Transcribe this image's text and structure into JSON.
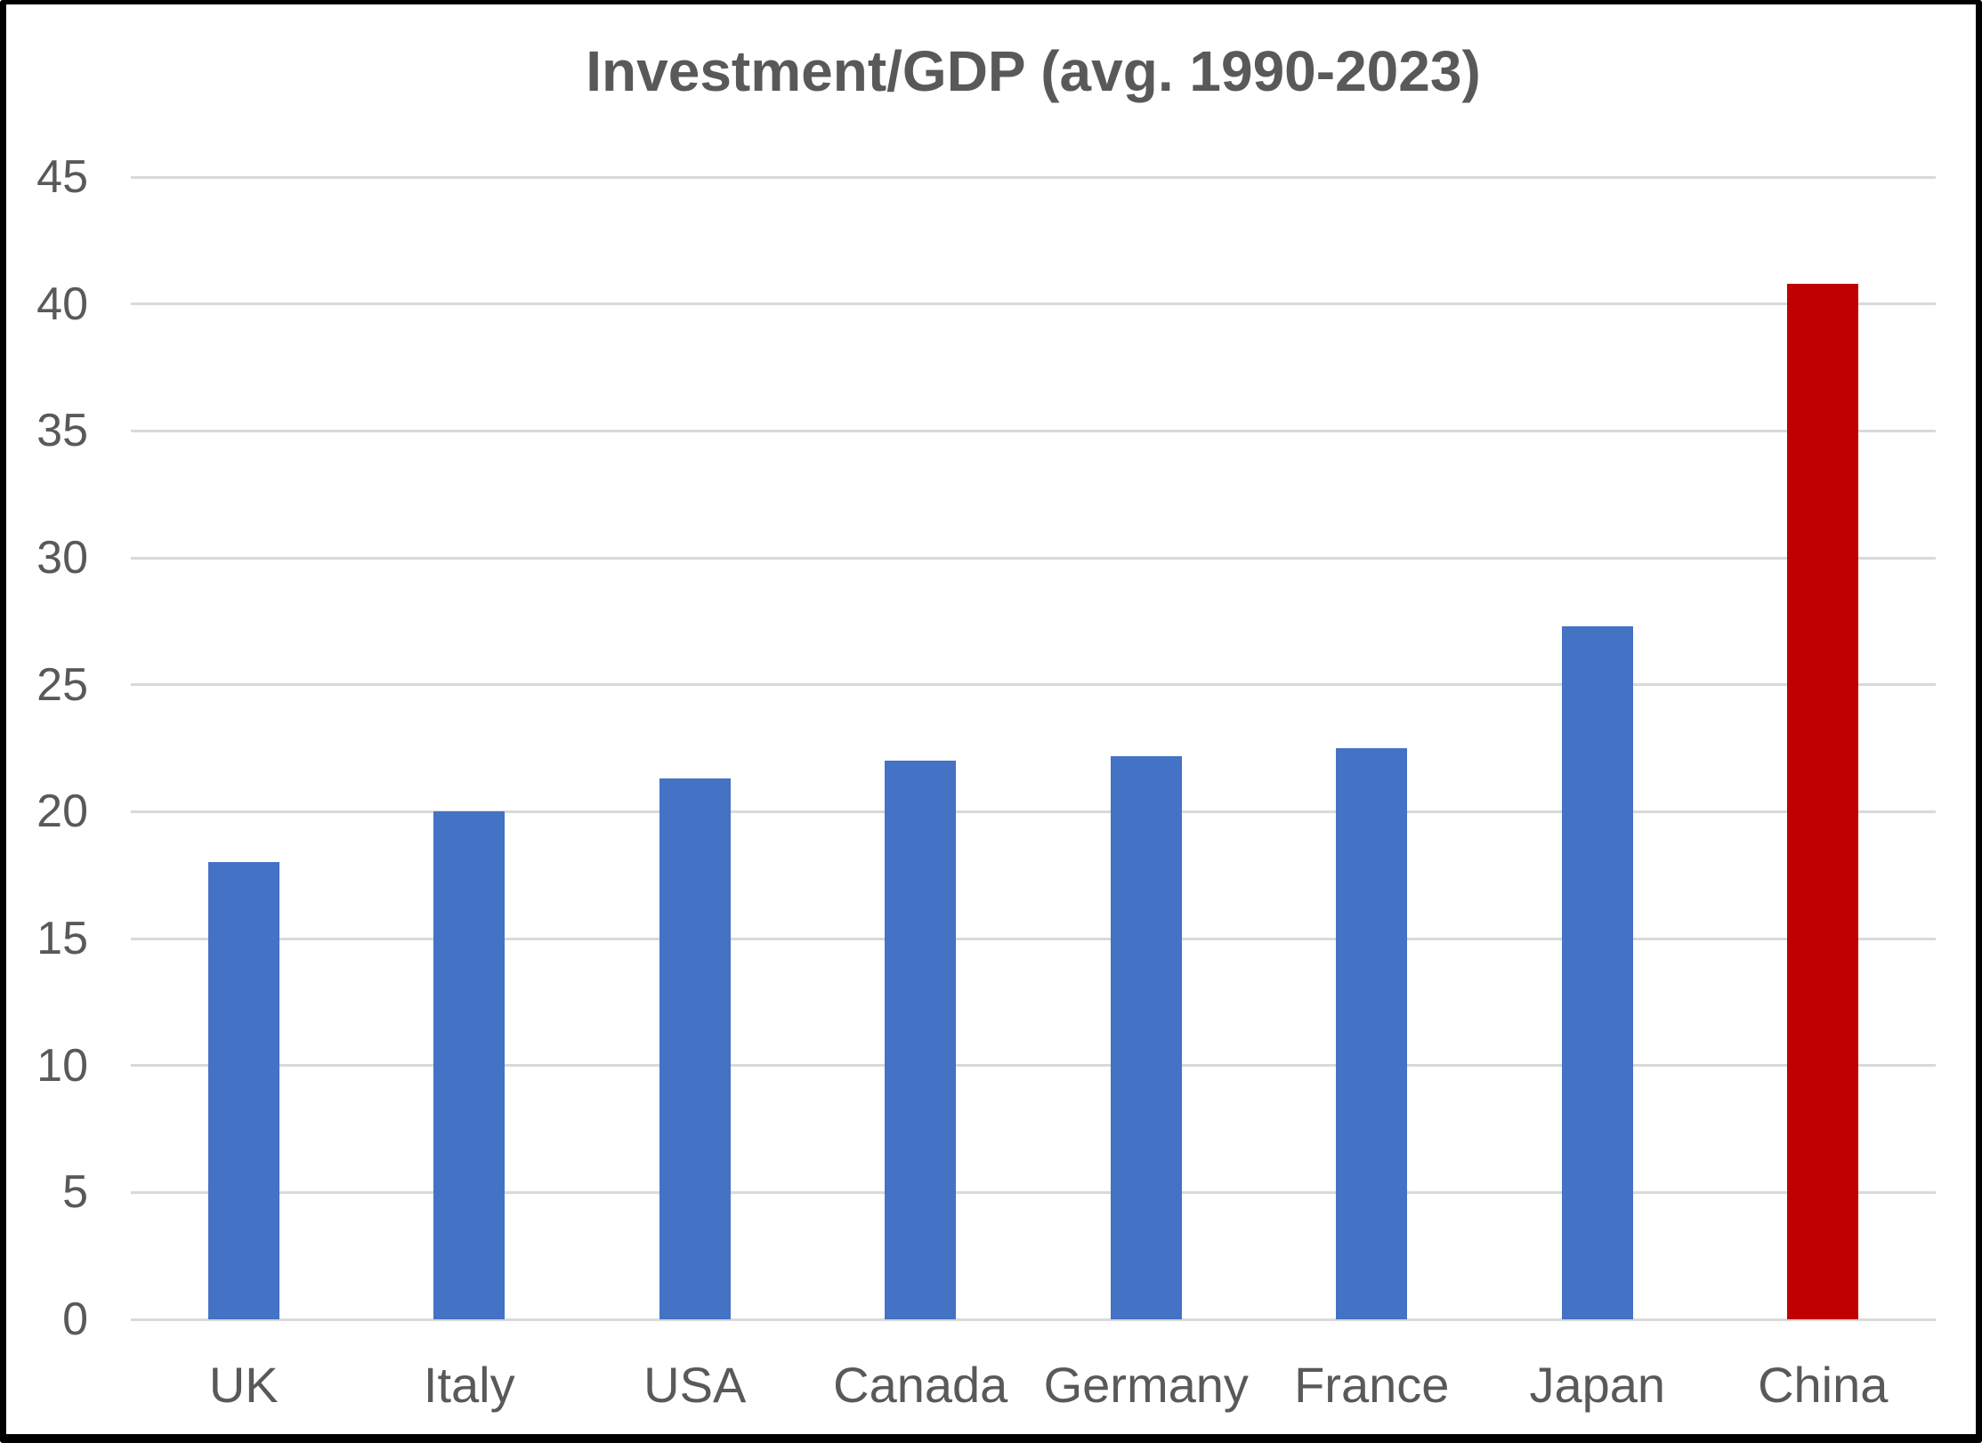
{
  "chart_data": {
    "type": "bar",
    "title": "Investment/GDP (avg. 1990-2023)",
    "categories": [
      "UK",
      "Italy",
      "USA",
      "Canada",
      "Germany",
      "France",
      "Japan",
      "China"
    ],
    "values": [
      18,
      20,
      21.3,
      22,
      22.2,
      22.5,
      27.3,
      40.8
    ],
    "series": [
      {
        "name": "Investment/GDP",
        "values": [
          18,
          20,
          21.3,
          22,
          22.2,
          22.5,
          27.3,
          40.8
        ]
      }
    ],
    "bar_colors": [
      "#4472C4",
      "#4472C4",
      "#4472C4",
      "#4472C4",
      "#4472C4",
      "#4472C4",
      "#4472C4",
      "#C00000"
    ],
    "xlabel": "",
    "ylabel": "",
    "ylim": [
      0,
      45
    ],
    "ytick_step": 5,
    "ytick_labels": [
      "0",
      "5",
      "10",
      "15",
      "20",
      "25",
      "30",
      "35",
      "40",
      "45"
    ],
    "grid": true,
    "legend": false
  },
  "colors": {
    "bar_default": "#4472C4",
    "bar_highlight": "#C00000",
    "gridline": "#D9D9D9",
    "text": "#595959",
    "background": "#FFFFFF",
    "frame_border": "#000000"
  }
}
